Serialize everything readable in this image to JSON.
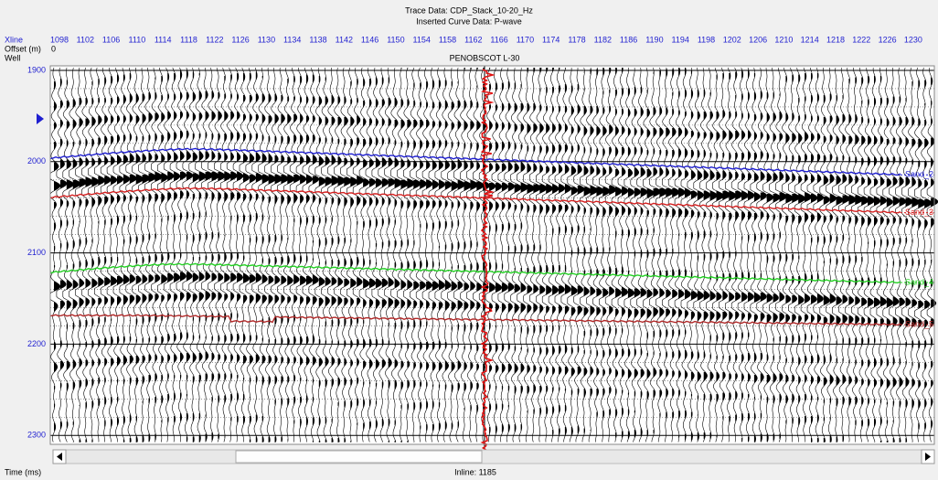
{
  "header": {
    "trace_data": "Trace Data: CDP_Stack_10-20_Hz",
    "curve_data": "Inserted Curve Data:  P-wave"
  },
  "labels": {
    "xline": "Xline",
    "offset": "Offset (m)",
    "offset_value": "0",
    "well": "Well"
  },
  "xlines": [
    "1098",
    "1102",
    "1106",
    "1110",
    "1114",
    "1118",
    "1122",
    "1126",
    "1130",
    "1134",
    "1138",
    "1142",
    "1146",
    "1150",
    "1154",
    "1158",
    "1162",
    "1166",
    "1170",
    "1174",
    "1178",
    "1182",
    "1186",
    "1190",
    "1194",
    "1198",
    "1202",
    "1206",
    "1210",
    "1214",
    "1218",
    "1222",
    "1226",
    "1230"
  ],
  "well_name": "PENOBSCOT L-30",
  "time_ticks": [
    "1900",
    "2000",
    "2100",
    "2200",
    "2300"
  ],
  "horizons": [
    {
      "name": "Sand_2",
      "color": "#1f1fd0"
    },
    {
      "name": "Sand_3",
      "color": "#d42020"
    },
    {
      "name": "Sand_4",
      "color": "#22d022"
    },
    {
      "name": "Sand_5",
      "color": "#b02828"
    }
  ],
  "footer": {
    "axis": "Time (ms)",
    "inline": "Inline: 1185"
  }
}
